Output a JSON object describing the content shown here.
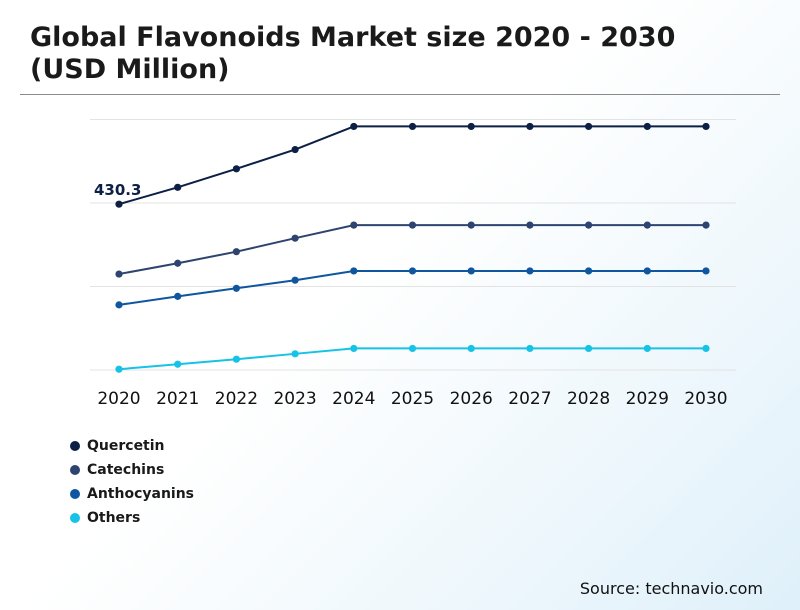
{
  "title": "Global Flavonoids Market size 2020 - 2030 (USD Million)",
  "source": "Source: technavio.com",
  "colors": {
    "quercetin": "#0c1f45",
    "catechins": "#2e4470",
    "anthocyanins": "#0f56a0",
    "others": "#16c2e6",
    "grid": "#e3e3e3"
  },
  "chart_data": {
    "type": "line",
    "title": "Global Flavonoids Market size 2020 - 2030 (USD Million)",
    "xlabel": "",
    "ylabel": "",
    "grid": true,
    "legend_position": "bottom-left",
    "x": [
      "2020",
      "2021",
      "2022",
      "2023",
      "2024",
      "2025",
      "2026",
      "2027",
      "2028",
      "2029",
      "2030"
    ],
    "ylim": [
      0,
      650
    ],
    "series": [
      {
        "name": "Quercetin",
        "color": "#0c1f45",
        "values": [
          430.3,
          474,
          522,
          572,
          632,
          632,
          632,
          632,
          632,
          632,
          632
        ]
      },
      {
        "name": "Catechins",
        "color": "#2e4470",
        "values": [
          249,
          277,
          307,
          342,
          376,
          376,
          376,
          376,
          376,
          376,
          376
        ]
      },
      {
        "name": "Anthocyanins",
        "color": "#0f56a0",
        "values": [
          169,
          191,
          212,
          233,
          257,
          257,
          257,
          257,
          257,
          257,
          257
        ]
      },
      {
        "name": "Others",
        "color": "#16c2e6",
        "values": [
          2,
          15,
          28,
          42,
          56,
          56,
          56,
          56,
          56,
          56,
          56
        ]
      }
    ],
    "annotations": [
      {
        "series": "Quercetin",
        "x": "2020",
        "text": "430.3"
      }
    ]
  }
}
